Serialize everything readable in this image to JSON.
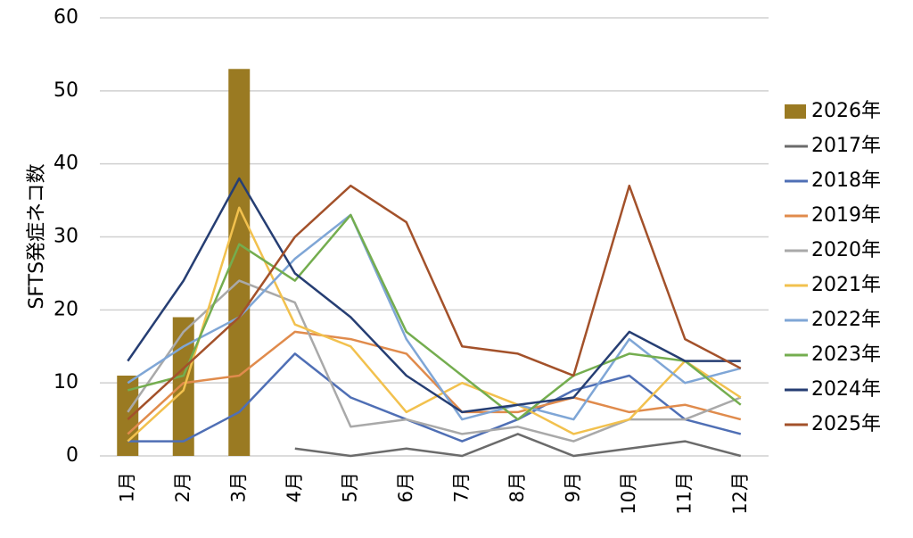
{
  "chart_data": {
    "type": "bar+line",
    "ylabel": "SFTS発症ネコ数",
    "ylim": [
      0,
      60
    ],
    "yticks": [
      0,
      10,
      20,
      30,
      40,
      50,
      60
    ],
    "categories": [
      "1月",
      "2月",
      "3月",
      "4月",
      "5月",
      "6月",
      "7月",
      "8月",
      "9月",
      "10月",
      "11月",
      "12月"
    ],
    "grid": "horizontal",
    "legend_position": "right",
    "bar_series": {
      "name": "2026年",
      "color": "#9a7a22",
      "values": [
        11,
        19,
        53,
        null,
        null,
        null,
        null,
        null,
        null,
        null,
        null,
        null
      ]
    },
    "line_series": [
      {
        "name": "2017年",
        "color": "#6b6b6b",
        "values": [
          null,
          null,
          null,
          1,
          0,
          1,
          0,
          3,
          0,
          1,
          2,
          0
        ]
      },
      {
        "name": "2018年",
        "color": "#4f6fb5",
        "values": [
          2,
          2,
          6,
          14,
          8,
          5,
          2,
          5,
          9,
          11,
          5,
          3
        ]
      },
      {
        "name": "2019年",
        "color": "#e08b4c",
        "values": [
          3,
          10,
          11,
          17,
          16,
          14,
          6,
          6,
          8,
          6,
          7,
          5
        ]
      },
      {
        "name": "2020年",
        "color": "#a9a9a9",
        "values": [
          6,
          17,
          24,
          21,
          4,
          5,
          3,
          4,
          2,
          5,
          5,
          8
        ]
      },
      {
        "name": "2021年",
        "color": "#f2c14e",
        "values": [
          2,
          9,
          34,
          18,
          15,
          6,
          10,
          7,
          3,
          5,
          13,
          8
        ]
      },
      {
        "name": "2022年",
        "color": "#7fa6d6",
        "values": [
          10,
          15,
          19,
          27,
          33,
          16,
          5,
          7,
          5,
          16,
          10,
          12
        ]
      },
      {
        "name": "2023年",
        "color": "#74ad4f",
        "values": [
          9,
          11,
          29,
          24,
          33,
          17,
          11,
          5,
          11,
          14,
          13,
          7
        ]
      },
      {
        "name": "2024年",
        "color": "#263e73",
        "values": [
          13,
          24,
          38,
          25,
          19,
          11,
          6,
          7,
          8,
          17,
          13,
          13
        ]
      },
      {
        "name": "2025年",
        "color": "#a3512a",
        "values": [
          5,
          12,
          19,
          30,
          37,
          32,
          15,
          14,
          11,
          37,
          16,
          12
        ]
      }
    ]
  }
}
